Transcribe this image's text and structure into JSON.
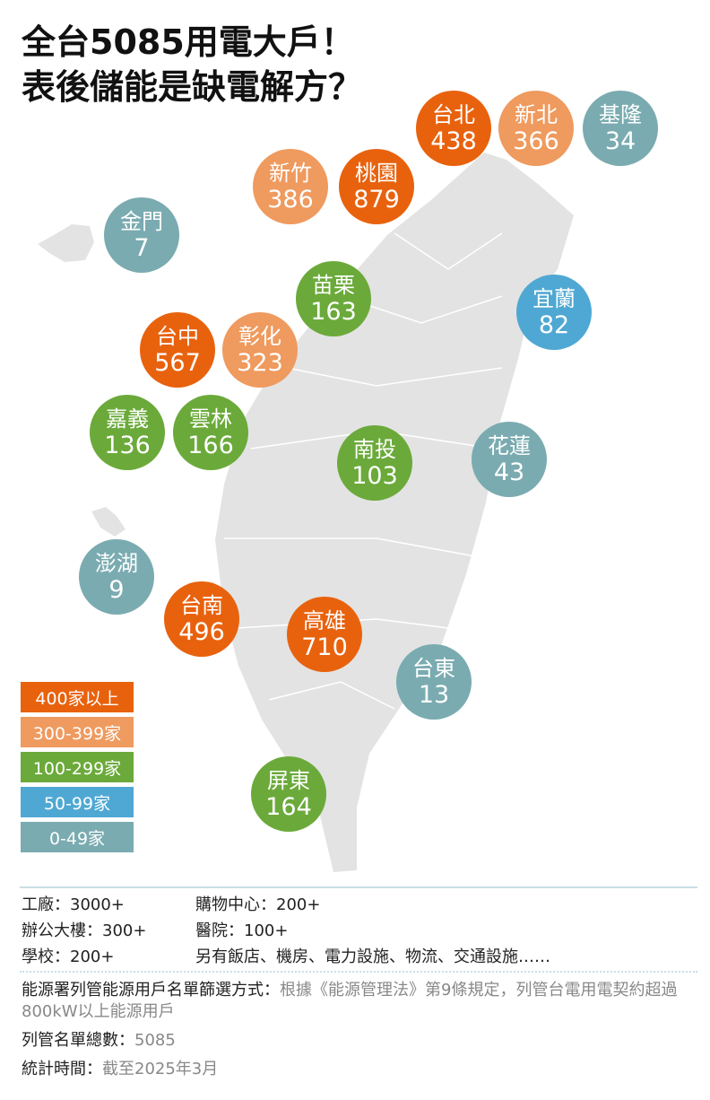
{
  "title": {
    "line1": "全台5085用電大戶！",
    "line2": "表後儲能是缺電解方？"
  },
  "colors": {
    "400+": "#E8620E",
    "300-399": "#EF9A5E",
    "100-299": "#6BAA3A",
    "50-99": "#4FA8D3",
    "0-49": "#7AABB0",
    "land": "#e3e3e3"
  },
  "regions": [
    {
      "name": "台北",
      "value": "438",
      "tier": "400+"
    },
    {
      "name": "新北",
      "value": "366",
      "tier": "300-399"
    },
    {
      "name": "基隆",
      "value": "34",
      "tier": "0-49"
    },
    {
      "name": "新竹",
      "value": "386",
      "tier": "300-399"
    },
    {
      "name": "桃園",
      "value": "879",
      "tier": "400+"
    },
    {
      "name": "金門",
      "value": "7",
      "tier": "0-49"
    },
    {
      "name": "苗栗",
      "value": "163",
      "tier": "100-299"
    },
    {
      "name": "宜蘭",
      "value": "82",
      "tier": "50-99"
    },
    {
      "name": "台中",
      "value": "567",
      "tier": "400+"
    },
    {
      "name": "彰化",
      "value": "323",
      "tier": "300-399"
    },
    {
      "name": "嘉義",
      "value": "136",
      "tier": "100-299"
    },
    {
      "name": "雲林",
      "value": "166",
      "tier": "100-299"
    },
    {
      "name": "南投",
      "value": "103",
      "tier": "100-299"
    },
    {
      "name": "花蓮",
      "value": "43",
      "tier": "0-49"
    },
    {
      "name": "澎湖",
      "value": "9",
      "tier": "0-49"
    },
    {
      "name": "台南",
      "value": "496",
      "tier": "400+"
    },
    {
      "name": "高雄",
      "value": "710",
      "tier": "400+"
    },
    {
      "name": "台東",
      "value": "13",
      "tier": "0-49"
    },
    {
      "name": "屏東",
      "value": "164",
      "tier": "100-299"
    }
  ],
  "legend": [
    {
      "label": "400家以上",
      "tier": "400+"
    },
    {
      "label": "300-399家",
      "tier": "300-399"
    },
    {
      "label": "100-299家",
      "tier": "100-299"
    },
    {
      "label": "50-99家",
      "tier": "50-99"
    },
    {
      "label": "0-49家",
      "tier": "0-49"
    }
  ],
  "categories": [
    "工廠：3000+",
    "購物中心：200+",
    "辦公大樓：300+",
    "醫院：100+",
    "學校：200+",
    "另有飯店、機房、電力設施、物流、交通設施……"
  ],
  "notes": {
    "criteria_label": "能源署列管能源用戶名單篩選方式：",
    "criteria_text": "根據《能源管理法》第9條規定，列管台電用電契約超過800kW以上能源用戶",
    "total_label": "列管名單總數：",
    "total_value": "5085",
    "time_label": "統計時間：",
    "time_value": "截至2025年3月"
  }
}
